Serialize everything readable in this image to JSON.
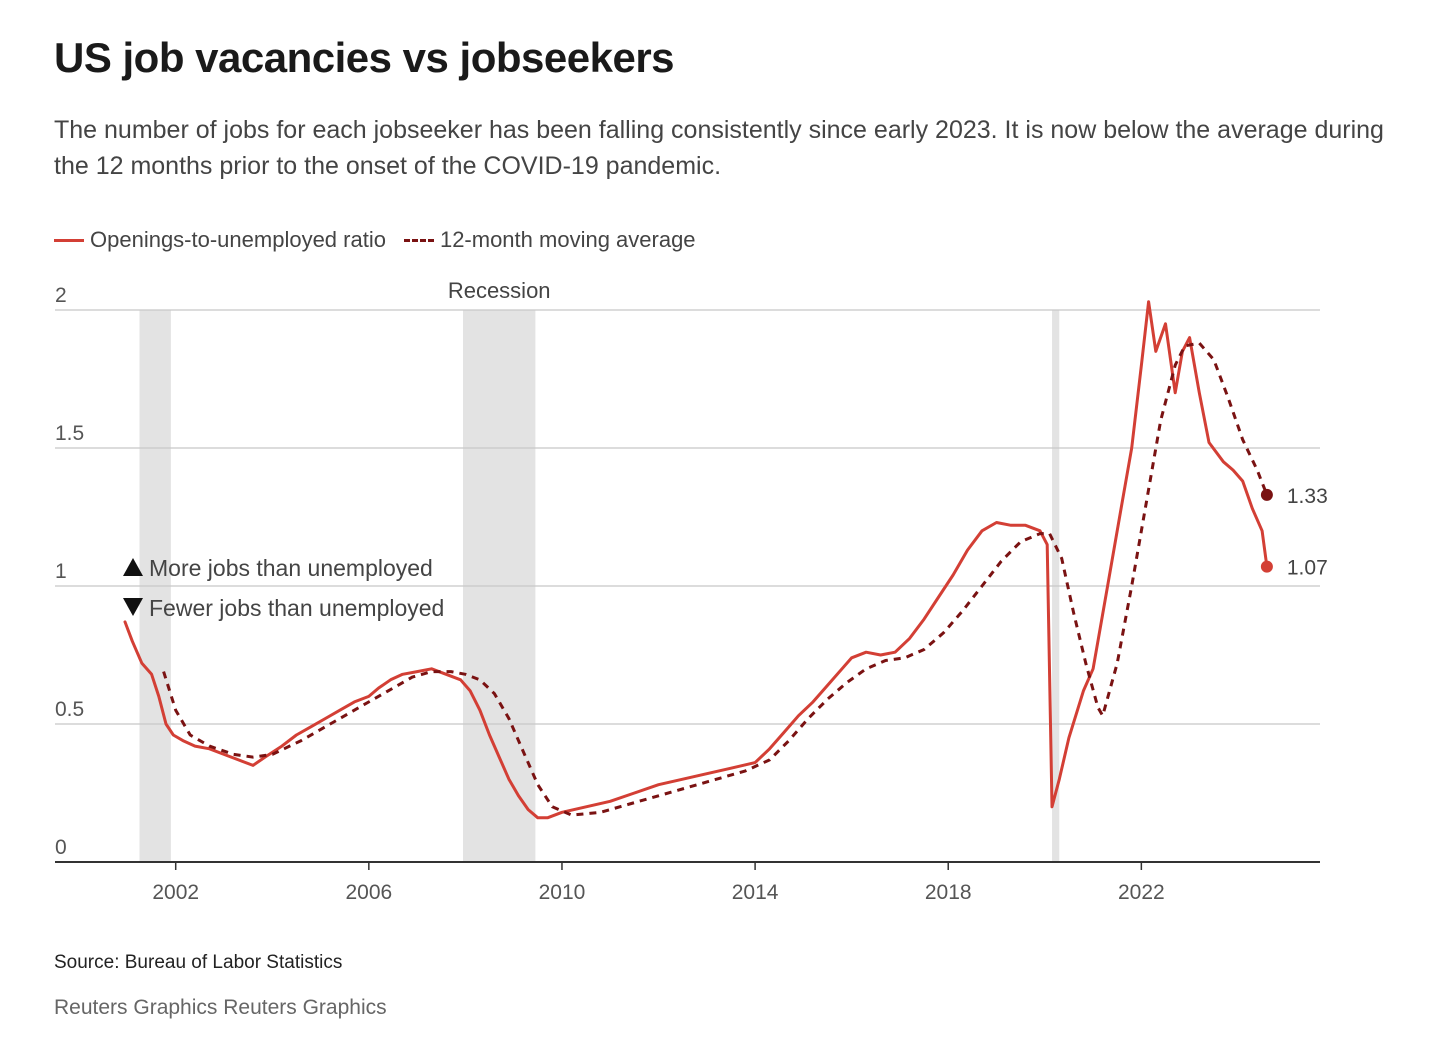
{
  "title": "US job vacancies vs jobseekers",
  "subtitle": "The number of jobs for each jobseeker has been falling consistently since early 2023. It is now below the average during the 12 months prior to the onset of the COVID-19 pandemic.",
  "source": "Source: Bureau of Labor Statistics",
  "credit": "Reuters Graphics Reuters Graphics",
  "colors": {
    "ratio": "#d33f35",
    "average": "#7a1212",
    "recession": "#e3e3e3",
    "grid": "#c8c8c8",
    "axis": "#333333"
  },
  "chart_data": {
    "type": "line",
    "title": "US job vacancies vs jobseekers",
    "xlim": [
      1999.5,
      2025.7
    ],
    "ylim": [
      0,
      2
    ],
    "x_ticks": [
      2002,
      2006,
      2010,
      2014,
      2018,
      2022
    ],
    "y_ticks": [
      0,
      0.5,
      1,
      1.5,
      2
    ],
    "grid": true,
    "legend_position": "top-left",
    "recession_label": "Recession",
    "recessions": [
      [
        2001.25,
        2001.9
      ],
      [
        2007.95,
        2009.45
      ],
      [
        2020.15,
        2020.3
      ]
    ],
    "annotations": {
      "above": "More jobs than unemployed",
      "below": "Fewer jobs than unemployed"
    },
    "series": [
      {
        "name": "Openings-to-unemployed ratio",
        "style": "solid",
        "color": "#d33f35",
        "end_label": "1.07",
        "x": [
          2000.95,
          2001.1,
          2001.3,
          2001.5,
          2001.65,
          2001.8,
          2001.95,
          2002.15,
          2002.4,
          2002.7,
          2003.0,
          2003.3,
          2003.6,
          2003.85,
          2004.2,
          2004.5,
          2004.8,
          2005.1,
          2005.4,
          2005.7,
          2006.0,
          2006.2,
          2006.45,
          2006.7,
          2007.0,
          2007.3,
          2007.6,
          2007.9,
          2008.1,
          2008.3,
          2008.5,
          2008.7,
          2008.9,
          2009.1,
          2009.3,
          2009.5,
          2009.7,
          2010.0,
          2010.5,
          2011.0,
          2011.5,
          2012.0,
          2012.5,
          2013.0,
          2013.5,
          2014.0,
          2014.3,
          2014.6,
          2014.9,
          2015.2,
          2015.5,
          2015.8,
          2016.0,
          2016.3,
          2016.6,
          2016.9,
          2017.2,
          2017.5,
          2017.8,
          2018.1,
          2018.4,
          2018.7,
          2019.0,
          2019.3,
          2019.6,
          2019.9,
          2020.05,
          2020.15,
          2020.3,
          2020.5,
          2020.8,
          2021.0,
          2021.3,
          2021.6,
          2021.8,
          2022.0,
          2022.15,
          2022.3,
          2022.5,
          2022.7,
          2022.85,
          2023.0,
          2023.2,
          2023.4,
          2023.7,
          2023.9,
          2024.1,
          2024.3,
          2024.5,
          2024.6
        ],
        "y": [
          0.87,
          0.8,
          0.72,
          0.68,
          0.6,
          0.5,
          0.46,
          0.44,
          0.42,
          0.41,
          0.39,
          0.37,
          0.35,
          0.38,
          0.42,
          0.46,
          0.49,
          0.52,
          0.55,
          0.58,
          0.6,
          0.63,
          0.66,
          0.68,
          0.69,
          0.7,
          0.68,
          0.66,
          0.62,
          0.55,
          0.46,
          0.38,
          0.3,
          0.24,
          0.19,
          0.16,
          0.16,
          0.18,
          0.2,
          0.22,
          0.25,
          0.28,
          0.3,
          0.32,
          0.34,
          0.36,
          0.41,
          0.47,
          0.53,
          0.58,
          0.64,
          0.7,
          0.74,
          0.76,
          0.75,
          0.76,
          0.81,
          0.88,
          0.96,
          1.04,
          1.13,
          1.2,
          1.23,
          1.22,
          1.22,
          1.2,
          1.15,
          0.2,
          0.3,
          0.45,
          0.62,
          0.7,
          1.0,
          1.3,
          1.5,
          1.8,
          2.03,
          1.85,
          1.95,
          1.7,
          1.85,
          1.9,
          1.7,
          1.52,
          1.45,
          1.42,
          1.38,
          1.28,
          1.2,
          1.07
        ]
      },
      {
        "name": "12-month moving average",
        "style": "dashed",
        "color": "#7a1212",
        "end_label": "1.33",
        "x": [
          2001.75,
          2002.0,
          2002.3,
          2002.7,
          2003.2,
          2003.6,
          2004.0,
          2004.6,
          2005.2,
          2005.8,
          2006.4,
          2006.9,
          2007.3,
          2007.7,
          2008.0,
          2008.3,
          2008.6,
          2008.9,
          2009.2,
          2009.5,
          2009.8,
          2010.2,
          2010.8,
          2011.4,
          2012.0,
          2012.6,
          2013.2,
          2013.8,
          2014.3,
          2014.7,
          2015.1,
          2015.5,
          2015.9,
          2016.3,
          2016.7,
          2017.1,
          2017.5,
          2017.9,
          2018.3,
          2018.7,
          2019.1,
          2019.5,
          2019.9,
          2020.1,
          2020.35,
          2020.6,
          2020.85,
          2021.1,
          2021.2,
          2021.5,
          2021.8,
          2022.1,
          2022.4,
          2022.7,
          2022.9,
          2023.2,
          2023.5,
          2023.8,
          2024.1,
          2024.4,
          2024.6
        ],
        "y": [
          0.69,
          0.55,
          0.46,
          0.42,
          0.39,
          0.38,
          0.39,
          0.44,
          0.5,
          0.56,
          0.62,
          0.67,
          0.69,
          0.69,
          0.68,
          0.66,
          0.61,
          0.52,
          0.4,
          0.28,
          0.2,
          0.17,
          0.18,
          0.21,
          0.24,
          0.27,
          0.3,
          0.33,
          0.37,
          0.44,
          0.52,
          0.59,
          0.65,
          0.7,
          0.73,
          0.74,
          0.77,
          0.83,
          0.91,
          1.0,
          1.09,
          1.16,
          1.19,
          1.19,
          1.1,
          0.9,
          0.72,
          0.56,
          0.53,
          0.72,
          1.0,
          1.3,
          1.6,
          1.8,
          1.87,
          1.88,
          1.82,
          1.68,
          1.53,
          1.42,
          1.33
        ]
      }
    ]
  }
}
